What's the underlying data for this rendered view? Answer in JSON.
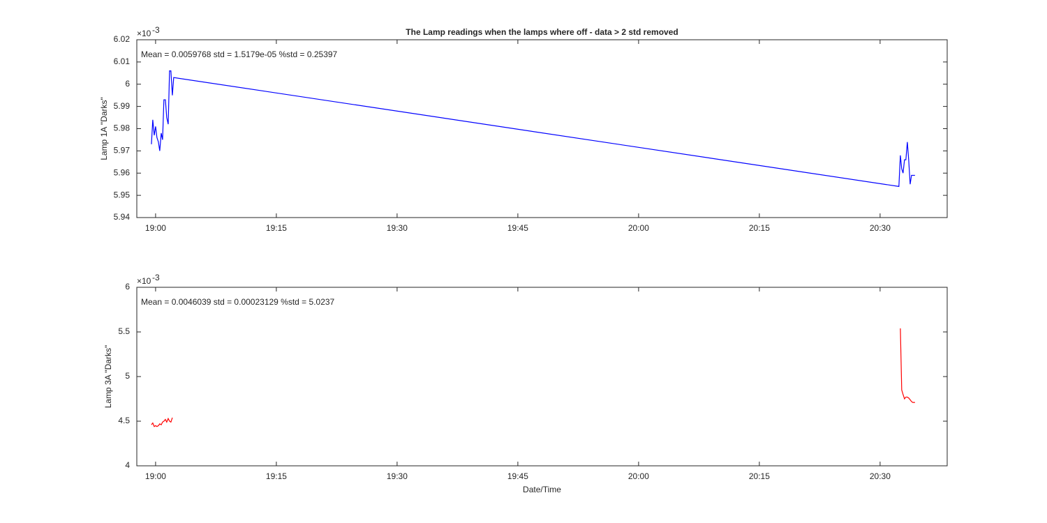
{
  "chart_data": [
    {
      "type": "line",
      "title": "The Lamp readings when the lamps where off - data > 2 std removed",
      "ylabel": "Lamp 1A \"Darks\"",
      "annotation": "Mean = 0.0059768  std = 1.5179e-05  %std = 0.25397",
      "exponent_base": "×10",
      "exponent": "-3",
      "color": "#0000ff",
      "x": [
        "18:59:29",
        "18:59:39",
        "18:59:50",
        "19:00:00",
        "19:00:10",
        "19:00:21",
        "19:00:31",
        "19:00:42",
        "19:00:52",
        "19:01:02",
        "19:01:13",
        "19:01:23",
        "19:01:34",
        "19:01:44",
        "19:01:54",
        "19:02:05",
        "19:02:15",
        "20:32:20",
        "20:32:31",
        "20:32:41",
        "20:32:51",
        "20:33:02",
        "20:33:12",
        "20:33:23",
        "20:33:33",
        "20:33:44",
        "20:33:54",
        "20:34:04",
        "20:34:20"
      ],
      "values": [
        5.973,
        5.984,
        5.977,
        5.981,
        5.976,
        5.974,
        5.97,
        5.978,
        5.975,
        5.993,
        5.993,
        5.985,
        5.982,
        6.006,
        6.006,
        5.995,
        6.003,
        5.954,
        5.968,
        5.962,
        5.96,
        5.966,
        5.966,
        5.974,
        5.966,
        5.955,
        5.959,
        5.959,
        5.959
      ],
      "xlim": [
        "18:57:40",
        "20:38:20"
      ],
      "xticks": [
        "19:00",
        "19:15",
        "19:30",
        "19:45",
        "20:00",
        "20:15",
        "20:30"
      ],
      "ylim": [
        5.94,
        6.02
      ],
      "yticks": [
        5.94,
        5.95,
        5.96,
        5.97,
        5.98,
        5.99,
        6,
        6.01,
        6.02
      ]
    },
    {
      "type": "line",
      "ylabel": "Lamp 3A \"Darks\"",
      "xlabel": "Date/Time",
      "annotation": "Mean = 0.0046039  std = 0.00023129  %std = 5.0237",
      "exponent_base": "×10",
      "exponent": "-3",
      "color": "#ff0000",
      "x": [
        "18:59:29",
        "18:59:39",
        "18:59:50",
        "19:00:00",
        "19:00:10",
        "19:00:21",
        "19:00:31",
        "19:00:42",
        "19:00:52",
        "19:01:02",
        "19:01:13",
        "19:01:23",
        "19:01:34",
        "19:01:44",
        "19:01:54",
        "19:02:05",
        "20:00:00",
        "20:32:31",
        "20:32:41",
        "20:32:51",
        "20:33:02",
        "20:33:12",
        "20:33:23",
        "20:33:33",
        "20:33:44",
        "20:33:54",
        "20:34:04",
        "20:34:20"
      ],
      "values": [
        4.46,
        4.48,
        4.44,
        4.45,
        4.44,
        4.45,
        4.47,
        4.46,
        4.49,
        4.5,
        4.52,
        4.49,
        4.53,
        4.5,
        4.49,
        4.54,
        null,
        5.54,
        4.85,
        4.8,
        4.75,
        4.77,
        4.77,
        4.76,
        4.74,
        4.72,
        4.71,
        4.71
      ],
      "xlim": [
        "18:57:40",
        "20:38:20"
      ],
      "xticks": [
        "19:00",
        "19:15",
        "19:30",
        "19:45",
        "20:00",
        "20:15",
        "20:30"
      ],
      "ylim": [
        4,
        6
      ],
      "yticks": [
        4,
        4.5,
        5,
        5.5,
        6
      ]
    }
  ]
}
